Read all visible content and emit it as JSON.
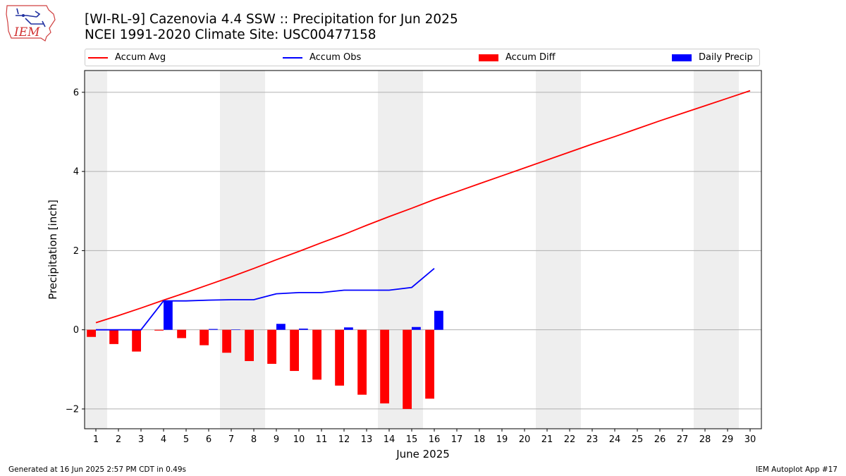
{
  "header": {
    "title_line1": "[WI-RL-9] Cazenovia 4.4 SSW :: Precipitation for Jun 2025",
    "title_line2": "NCEI 1991-2020 Climate Site: USC00477158",
    "logo_text": "IEM"
  },
  "legend": [
    {
      "label": "Accum Avg",
      "kind": "line",
      "color": "#ff0000"
    },
    {
      "label": "Accum Obs",
      "kind": "line",
      "color": "#0000ff"
    },
    {
      "label": "Accum Diff",
      "kind": "bar",
      "color": "#ff0000"
    },
    {
      "label": "Daily Precip",
      "kind": "bar",
      "color": "#0000ff"
    }
  ],
  "footer": {
    "left": "Generated at 16 Jun 2025 2:57 PM CDT in 0.49s",
    "right": "IEM Autoplot App #17"
  },
  "chart_data": {
    "type": "bar",
    "title": "[WI-RL-9] Cazenovia 4.4 SSW :: Precipitation for Jun 2025",
    "subtitle": "NCEI 1991-2020 Climate Site: USC00477158",
    "xlabel": "June 2025",
    "ylabel": "Precipitation [inch]",
    "xlim": [
      0.5,
      30.5
    ],
    "ylim": [
      -2.5,
      6.55
    ],
    "yticks": [
      -2,
      0,
      2,
      4,
      6
    ],
    "ytick_labels": [
      "−2",
      "0",
      "2",
      "4",
      "6"
    ],
    "x": [
      1,
      2,
      3,
      4,
      5,
      6,
      7,
      8,
      9,
      10,
      11,
      12,
      13,
      14,
      15,
      16,
      17,
      18,
      19,
      20,
      21,
      22,
      23,
      24,
      25,
      26,
      27,
      28,
      29,
      30
    ],
    "grid": "horizontal",
    "weekend_shading": [
      [
        0.5,
        1.5
      ],
      [
        6.5,
        8.5
      ],
      [
        13.5,
        15.5
      ],
      [
        20.5,
        22.5
      ],
      [
        27.5,
        29.5
      ]
    ],
    "weekend_color": "#eeeeee",
    "series": [
      {
        "name": "Accum Avg",
        "type": "line",
        "color": "#ff0000",
        "x": [
          1,
          2,
          3,
          4,
          5,
          6,
          7,
          8,
          9,
          10,
          11,
          12,
          13,
          14,
          15,
          16,
          17,
          18,
          19,
          20,
          21,
          22,
          23,
          24,
          25,
          26,
          27,
          28,
          29,
          30
        ],
        "values": [
          0.18,
          0.36,
          0.55,
          0.75,
          0.94,
          1.14,
          1.34,
          1.55,
          1.77,
          1.98,
          2.2,
          2.41,
          2.64,
          2.86,
          3.07,
          3.29,
          3.49,
          3.69,
          3.89,
          4.09,
          4.29,
          4.49,
          4.69,
          4.88,
          5.08,
          5.28,
          5.47,
          5.66,
          5.85,
          6.04
        ]
      },
      {
        "name": "Accum Obs",
        "type": "line",
        "color": "#0000ff",
        "x": [
          1,
          2,
          3,
          4,
          5,
          6,
          7,
          8,
          9,
          10,
          11,
          12,
          13,
          14,
          15,
          16
        ],
        "values": [
          0.0,
          0.0,
          0.0,
          0.73,
          0.73,
          0.75,
          0.76,
          0.76,
          0.91,
          0.94,
          0.94,
          1.0,
          1.0,
          1.0,
          1.07,
          1.55
        ]
      },
      {
        "name": "Accum Diff",
        "type": "bar",
        "color": "#ff0000",
        "x": [
          1,
          2,
          3,
          4,
          5,
          6,
          7,
          8,
          9,
          10,
          11,
          12,
          13,
          14,
          15,
          16
        ],
        "values": [
          -0.18,
          -0.36,
          -0.55,
          -0.02,
          -0.21,
          -0.39,
          -0.58,
          -0.79,
          -0.86,
          -1.04,
          -1.26,
          -1.41,
          -1.64,
          -1.86,
          -2.0,
          -1.74
        ]
      },
      {
        "name": "Daily Precip",
        "type": "bar",
        "color": "#0000ff",
        "x": [
          1,
          2,
          3,
          4,
          5,
          6,
          7,
          8,
          9,
          10,
          11,
          12,
          13,
          14,
          15,
          16
        ],
        "values": [
          0.0,
          0.0,
          0.0,
          0.73,
          0.0,
          0.02,
          0.01,
          0.0,
          0.15,
          0.03,
          0.0,
          0.06,
          0.0,
          0.0,
          0.07,
          0.48
        ]
      }
    ]
  }
}
